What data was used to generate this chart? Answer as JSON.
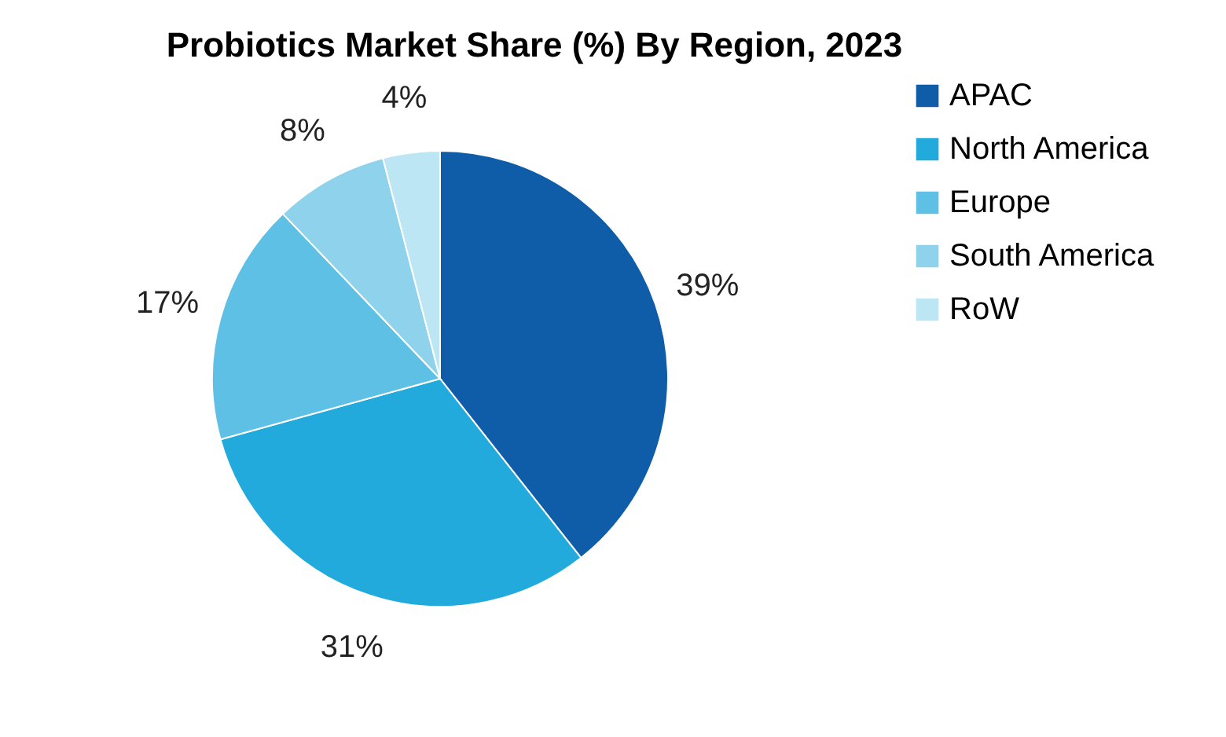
{
  "chart_data": {
    "type": "pie",
    "title": "Probiotics Market Share (%) By Region, 2023",
    "categories": [
      "APAC",
      "North America",
      "Europe",
      "South America",
      "RoW"
    ],
    "values": [
      39,
      31,
      17,
      8,
      4
    ],
    "colors": [
      "#0f5ca8",
      "#22aadd",
      "#5ec0e4",
      "#8fd2ec",
      "#bde6f4"
    ],
    "value_labels": [
      "39%",
      "31%",
      "17%",
      "8%",
      "4%"
    ],
    "legend": "right"
  }
}
